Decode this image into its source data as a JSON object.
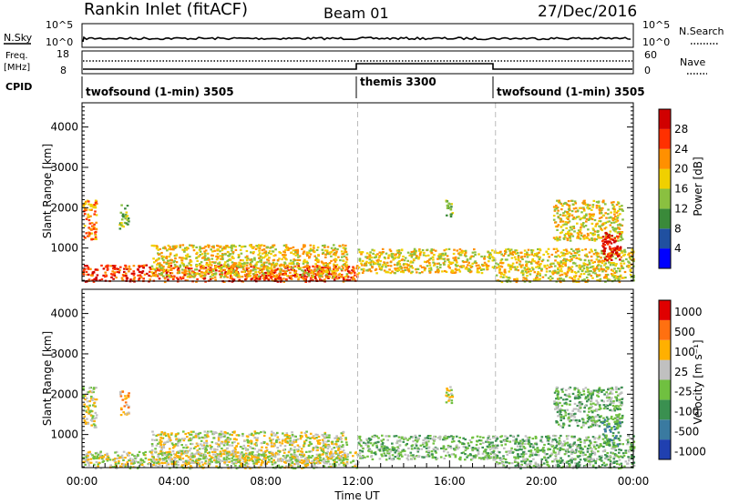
{
  "header": {
    "station": "Rankin Inlet (fitACF)",
    "beam": "Beam 01",
    "date": "27/Dec/2016"
  },
  "top_panels": {
    "nsky_label": "N.Sky",
    "nsky_ticks": [
      "10^5",
      "10^0"
    ],
    "nsearch_label": "N.Search",
    "nsearch_ticks": [
      "10^5",
      "10^0"
    ],
    "freq_label_1": "Freq.",
    "freq_label_2": "[MHz]",
    "freq_ticks": [
      "18",
      "8"
    ],
    "nave_label": "Nave",
    "nave_ticks": [
      "60",
      "0"
    ],
    "cpid_label": "CPID",
    "cpid_segments": [
      {
        "label": "twofsound (1-min) 3505",
        "start": 0,
        "end": 12
      },
      {
        "label": "themis 3300",
        "start": 12,
        "end": 18
      },
      {
        "label": "twofsound (1-min) 3505",
        "start": 18,
        "end": 24
      }
    ]
  },
  "power_panel": {
    "ylabel": "Slant Range [km]",
    "yticks": [
      "4000",
      "3000",
      "2000",
      "1000"
    ],
    "colorbar_label": "Power [dB]",
    "colorbar_ticks": [
      "28",
      "24",
      "20",
      "16",
      "12",
      "8",
      "4"
    ],
    "colors": [
      "#0000ff",
      "#2050a0",
      "#3a8a3a",
      "#8ac040",
      "#f0d000",
      "#ff9000",
      "#ff3000",
      "#d00000"
    ]
  },
  "velocity_panel": {
    "ylabel": "Slant Range [km]",
    "yticks": [
      "4000",
      "3000",
      "2000",
      "1000"
    ],
    "colorbar_label": "Velocity [m s⁻¹]",
    "colorbar_ticks": [
      "1000",
      "500",
      "100",
      "25",
      "-25",
      "-100",
      "-500",
      "-1000"
    ],
    "colors": [
      "#2040b0",
      "#3a7aa0",
      "#3a9050",
      "#70c040",
      "#c0c0c0",
      "#ffb000",
      "#ff7010",
      "#e00000"
    ]
  },
  "xaxis": {
    "label": "Time UT",
    "ticks": [
      "00:00",
      "04:00",
      "08:00",
      "12:00",
      "16:00",
      "20:00",
      "00:00"
    ]
  },
  "chart_data": {
    "type": "heatmap",
    "title": "Rankin Inlet (fitACF)",
    "x_range_hours": [
      0,
      24
    ],
    "y_range_km": [
      180,
      4600
    ],
    "panels": [
      {
        "name": "Power [dB]",
        "zlim": [
          0,
          32
        ]
      },
      {
        "name": "Velocity [m s⁻¹]",
        "zlim": [
          -1200,
          1200
        ]
      }
    ],
    "cpid_changes_hours": [
      12,
      18
    ],
    "backscatter_regions": [
      {
        "t0": 0.0,
        "t1": 0.6,
        "r0": 1200,
        "r1": 2200,
        "power": 22,
        "velocity": 100
      },
      {
        "t0": 1.6,
        "t1": 2.0,
        "r0": 1500,
        "r1": 2100,
        "power": 14,
        "velocity": 500
      },
      {
        "t0": 0.0,
        "t1": 12.0,
        "r0": 180,
        "r1": 600,
        "power": 26,
        "velocity": 25
      },
      {
        "t0": 3.0,
        "t1": 11.5,
        "r0": 300,
        "r1": 1100,
        "power": 18,
        "velocity": 100
      },
      {
        "t0": 12.0,
        "t1": 18.0,
        "r0": 400,
        "r1": 1000,
        "power": 20,
        "velocity": -100
      },
      {
        "t0": 15.8,
        "t1": 16.1,
        "r0": 1800,
        "r1": 2200,
        "power": 14,
        "velocity": 100
      },
      {
        "t0": 18.0,
        "t1": 24.0,
        "r0": 180,
        "r1": 1000,
        "power": 18,
        "velocity": -100
      },
      {
        "t0": 20.5,
        "t1": 23.5,
        "r0": 1200,
        "r1": 2200,
        "power": 16,
        "velocity": -100
      },
      {
        "t0": 22.6,
        "t1": 23.4,
        "r0": 700,
        "r1": 1400,
        "power": 30,
        "velocity": -500
      }
    ]
  }
}
